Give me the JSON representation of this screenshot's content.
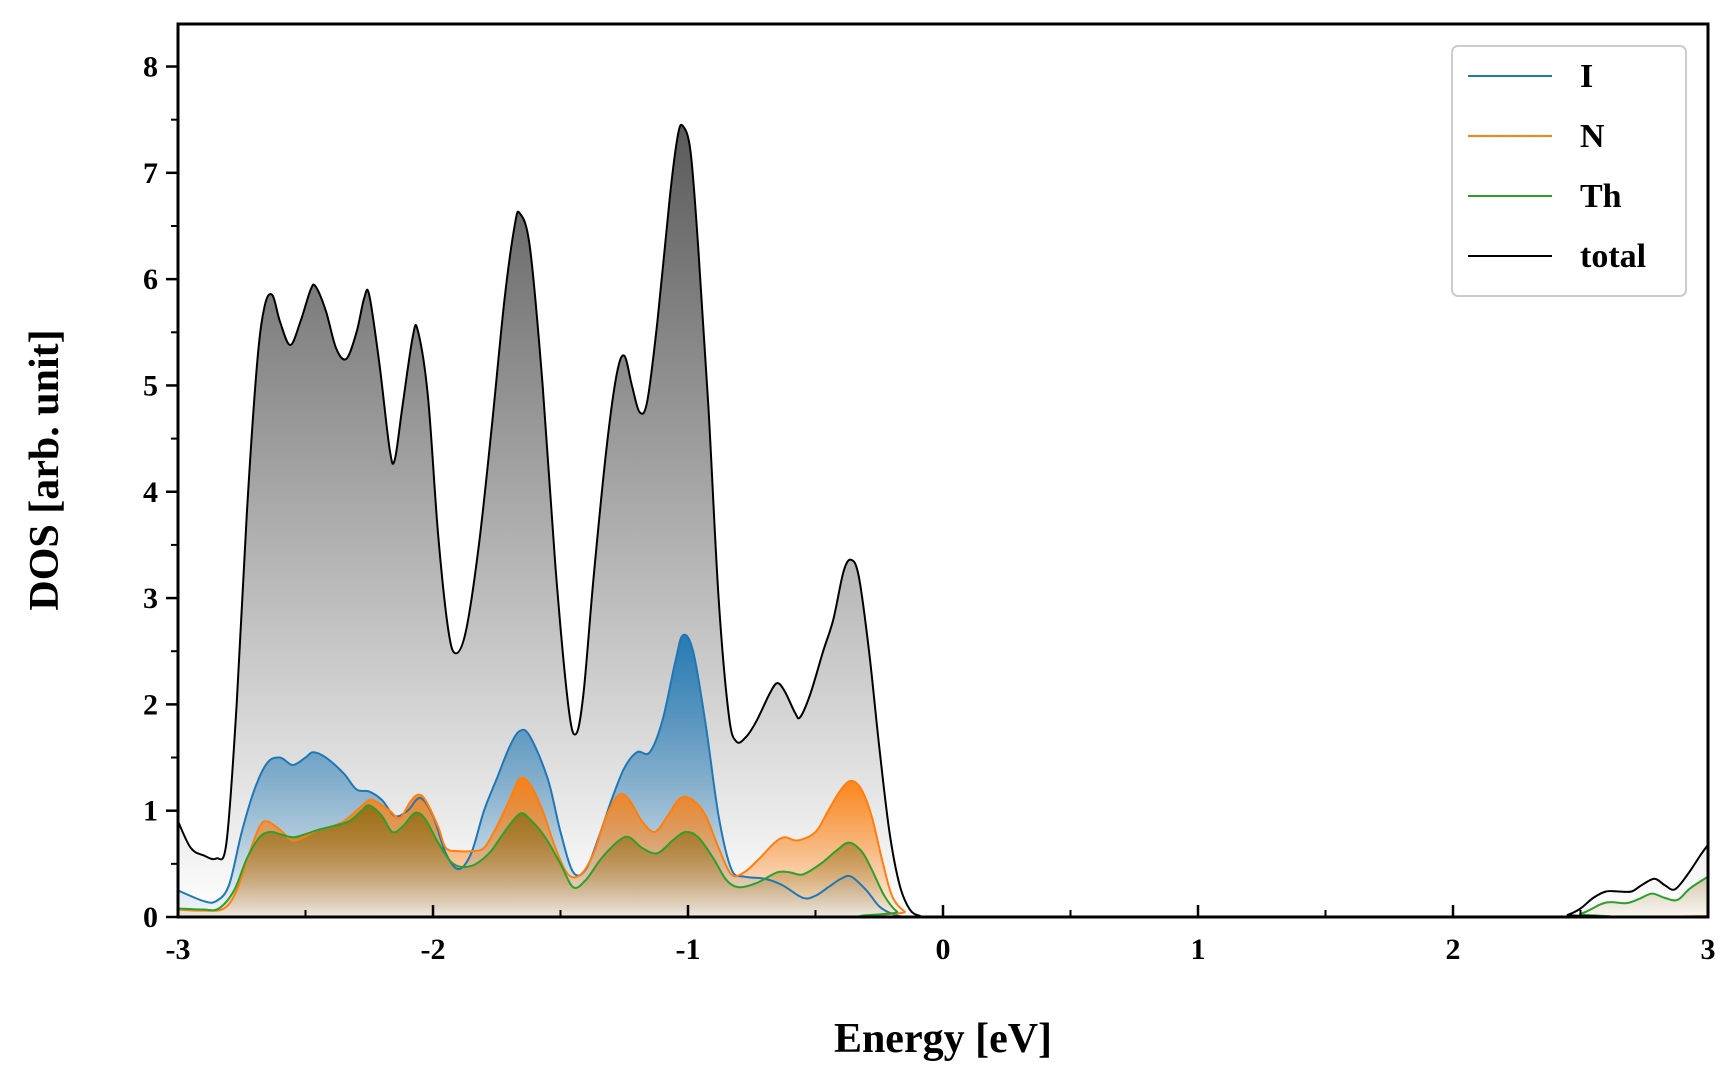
{
  "chart_data": {
    "type": "area",
    "xlabel": "Energy [eV]",
    "ylabel": "DOS [arb. unit]",
    "xlim": [
      -3,
      3
    ],
    "ylim": [
      0,
      8.4
    ],
    "x_ticks": [
      -3,
      -2,
      -1,
      0,
      1,
      2,
      3
    ],
    "x_tick_labels": [
      "-3",
      "-2",
      "-1",
      "0",
      "1",
      "2",
      "3"
    ],
    "y_ticks": [
      0,
      1,
      2,
      3,
      4,
      5,
      6,
      7,
      8
    ],
    "y_tick_labels": [
      "0",
      "1",
      "2",
      "3",
      "4",
      "5",
      "6",
      "7",
      "8"
    ],
    "grid": false,
    "legend_position": "top-right",
    "legend": [
      "I",
      "N",
      "Th",
      "total"
    ],
    "series": [
      {
        "name": "I",
        "color": "#1f77b4",
        "points": [
          [
            -3.0,
            0.25
          ],
          [
            -2.9,
            0.15
          ],
          [
            -2.85,
            0.15
          ],
          [
            -2.8,
            0.3
          ],
          [
            -2.75,
            0.8
          ],
          [
            -2.7,
            1.2
          ],
          [
            -2.65,
            1.45
          ],
          [
            -2.6,
            1.5
          ],
          [
            -2.55,
            1.43
          ],
          [
            -2.5,
            1.5
          ],
          [
            -2.47,
            1.55
          ],
          [
            -2.42,
            1.5
          ],
          [
            -2.35,
            1.35
          ],
          [
            -2.3,
            1.2
          ],
          [
            -2.25,
            1.18
          ],
          [
            -2.2,
            1.1
          ],
          [
            -2.15,
            0.95
          ],
          [
            -2.1,
            1.0
          ],
          [
            -2.05,
            1.12
          ],
          [
            -2.0,
            0.95
          ],
          [
            -1.95,
            0.6
          ],
          [
            -1.9,
            0.45
          ],
          [
            -1.85,
            0.6
          ],
          [
            -1.8,
            1.0
          ],
          [
            -1.75,
            1.3
          ],
          [
            -1.7,
            1.6
          ],
          [
            -1.66,
            1.75
          ],
          [
            -1.62,
            1.7
          ],
          [
            -1.55,
            1.3
          ],
          [
            -1.5,
            0.8
          ],
          [
            -1.45,
            0.42
          ],
          [
            -1.4,
            0.45
          ],
          [
            -1.35,
            0.75
          ],
          [
            -1.3,
            1.1
          ],
          [
            -1.25,
            1.4
          ],
          [
            -1.2,
            1.55
          ],
          [
            -1.15,
            1.55
          ],
          [
            -1.1,
            1.85
          ],
          [
            -1.05,
            2.4
          ],
          [
            -1.02,
            2.65
          ],
          [
            -0.98,
            2.5
          ],
          [
            -0.93,
            1.8
          ],
          [
            -0.88,
            0.95
          ],
          [
            -0.83,
            0.45
          ],
          [
            -0.78,
            0.38
          ],
          [
            -0.7,
            0.36
          ],
          [
            -0.63,
            0.3
          ],
          [
            -0.55,
            0.18
          ],
          [
            -0.5,
            0.2
          ],
          [
            -0.45,
            0.28
          ],
          [
            -0.4,
            0.36
          ],
          [
            -0.36,
            0.38
          ],
          [
            -0.3,
            0.25
          ],
          [
            -0.25,
            0.1
          ],
          [
            -0.2,
            0.03
          ],
          [
            -0.15,
            0.0
          ],
          [
            -0.1,
            0.0
          ],
          [
            3.0,
            0.0
          ]
        ]
      },
      {
        "name": "N",
        "color": "#ff7f0e",
        "points": [
          [
            -3.0,
            0.07
          ],
          [
            -2.9,
            0.06
          ],
          [
            -2.82,
            0.08
          ],
          [
            -2.77,
            0.25
          ],
          [
            -2.72,
            0.6
          ],
          [
            -2.68,
            0.85
          ],
          [
            -2.65,
            0.9
          ],
          [
            -2.6,
            0.82
          ],
          [
            -2.55,
            0.72
          ],
          [
            -2.5,
            0.76
          ],
          [
            -2.45,
            0.82
          ],
          [
            -2.4,
            0.85
          ],
          [
            -2.35,
            0.9
          ],
          [
            -2.3,
            1.0
          ],
          [
            -2.25,
            1.1
          ],
          [
            -2.22,
            1.08
          ],
          [
            -2.17,
            1.0
          ],
          [
            -2.13,
            0.93
          ],
          [
            -2.09,
            1.08
          ],
          [
            -2.06,
            1.15
          ],
          [
            -2.03,
            1.1
          ],
          [
            -1.98,
            0.85
          ],
          [
            -1.95,
            0.65
          ],
          [
            -1.9,
            0.62
          ],
          [
            -1.85,
            0.62
          ],
          [
            -1.8,
            0.65
          ],
          [
            -1.75,
            0.85
          ],
          [
            -1.7,
            1.1
          ],
          [
            -1.66,
            1.3
          ],
          [
            -1.62,
            1.25
          ],
          [
            -1.57,
            1.0
          ],
          [
            -1.52,
            0.65
          ],
          [
            -1.47,
            0.4
          ],
          [
            -1.42,
            0.4
          ],
          [
            -1.37,
            0.6
          ],
          [
            -1.32,
            0.95
          ],
          [
            -1.27,
            1.15
          ],
          [
            -1.23,
            1.1
          ],
          [
            -1.18,
            0.9
          ],
          [
            -1.13,
            0.8
          ],
          [
            -1.08,
            0.95
          ],
          [
            -1.03,
            1.12
          ],
          [
            -0.98,
            1.1
          ],
          [
            -0.93,
            0.95
          ],
          [
            -0.88,
            0.65
          ],
          [
            -0.83,
            0.4
          ],
          [
            -0.78,
            0.42
          ],
          [
            -0.72,
            0.55
          ],
          [
            -0.66,
            0.7
          ],
          [
            -0.62,
            0.75
          ],
          [
            -0.57,
            0.72
          ],
          [
            -0.5,
            0.8
          ],
          [
            -0.45,
            1.0
          ],
          [
            -0.4,
            1.2
          ],
          [
            -0.36,
            1.28
          ],
          [
            -0.32,
            1.2
          ],
          [
            -0.28,
            0.95
          ],
          [
            -0.24,
            0.55
          ],
          [
            -0.2,
            0.2
          ],
          [
            -0.15,
            0.05
          ],
          [
            -0.1,
            0.0
          ],
          [
            2.5,
            0.0
          ],
          [
            3.0,
            0.01
          ]
        ]
      },
      {
        "name": "Th",
        "color": "#2ca02c",
        "points": [
          [
            -3.0,
            0.08
          ],
          [
            -2.9,
            0.07
          ],
          [
            -2.84,
            0.08
          ],
          [
            -2.78,
            0.25
          ],
          [
            -2.73,
            0.55
          ],
          [
            -2.68,
            0.75
          ],
          [
            -2.64,
            0.8
          ],
          [
            -2.6,
            0.78
          ],
          [
            -2.55,
            0.75
          ],
          [
            -2.5,
            0.78
          ],
          [
            -2.45,
            0.82
          ],
          [
            -2.4,
            0.85
          ],
          [
            -2.33,
            0.9
          ],
          [
            -2.28,
            1.0
          ],
          [
            -2.25,
            1.05
          ],
          [
            -2.2,
            0.95
          ],
          [
            -2.16,
            0.8
          ],
          [
            -2.12,
            0.85
          ],
          [
            -2.07,
            0.98
          ],
          [
            -2.03,
            0.92
          ],
          [
            -1.98,
            0.7
          ],
          [
            -1.92,
            0.5
          ],
          [
            -1.85,
            0.48
          ],
          [
            -1.78,
            0.6
          ],
          [
            -1.72,
            0.8
          ],
          [
            -1.66,
            0.97
          ],
          [
            -1.62,
            0.92
          ],
          [
            -1.56,
            0.75
          ],
          [
            -1.5,
            0.5
          ],
          [
            -1.45,
            0.28
          ],
          [
            -1.4,
            0.35
          ],
          [
            -1.34,
            0.55
          ],
          [
            -1.27,
            0.72
          ],
          [
            -1.23,
            0.75
          ],
          [
            -1.18,
            0.65
          ],
          [
            -1.12,
            0.6
          ],
          [
            -1.06,
            0.72
          ],
          [
            -1.01,
            0.8
          ],
          [
            -0.96,
            0.75
          ],
          [
            -0.9,
            0.55
          ],
          [
            -0.85,
            0.35
          ],
          [
            -0.8,
            0.28
          ],
          [
            -0.73,
            0.32
          ],
          [
            -0.65,
            0.42
          ],
          [
            -0.6,
            0.42
          ],
          [
            -0.55,
            0.4
          ],
          [
            -0.48,
            0.5
          ],
          [
            -0.42,
            0.62
          ],
          [
            -0.37,
            0.7
          ],
          [
            -0.32,
            0.62
          ],
          [
            -0.28,
            0.45
          ],
          [
            -0.23,
            0.2
          ],
          [
            -0.18,
            0.05
          ],
          [
            -0.12,
            0.0
          ],
          [
            2.4,
            0.0
          ],
          [
            2.5,
            0.03
          ],
          [
            2.58,
            0.12
          ],
          [
            2.62,
            0.14
          ],
          [
            2.68,
            0.13
          ],
          [
            2.73,
            0.17
          ],
          [
            2.78,
            0.22
          ],
          [
            2.83,
            0.18
          ],
          [
            2.88,
            0.16
          ],
          [
            2.93,
            0.27
          ],
          [
            3.0,
            0.38
          ]
        ]
      },
      {
        "name": "total",
        "color": "#000000",
        "points": [
          [
            -3.0,
            0.9
          ],
          [
            -2.95,
            0.65
          ],
          [
            -2.9,
            0.58
          ],
          [
            -2.85,
            0.55
          ],
          [
            -2.81,
            0.7
          ],
          [
            -2.77,
            2.0
          ],
          [
            -2.73,
            3.8
          ],
          [
            -2.69,
            5.2
          ],
          [
            -2.66,
            5.75
          ],
          [
            -2.63,
            5.85
          ],
          [
            -2.6,
            5.6
          ],
          [
            -2.56,
            5.38
          ],
          [
            -2.52,
            5.6
          ],
          [
            -2.48,
            5.9
          ],
          [
            -2.46,
            5.93
          ],
          [
            -2.42,
            5.7
          ],
          [
            -2.38,
            5.35
          ],
          [
            -2.34,
            5.25
          ],
          [
            -2.3,
            5.5
          ],
          [
            -2.27,
            5.82
          ],
          [
            -2.25,
            5.85
          ],
          [
            -2.21,
            5.2
          ],
          [
            -2.17,
            4.4
          ],
          [
            -2.15,
            4.3
          ],
          [
            -2.12,
            4.8
          ],
          [
            -2.08,
            5.45
          ],
          [
            -2.06,
            5.52
          ],
          [
            -2.02,
            4.9
          ],
          [
            -1.98,
            3.6
          ],
          [
            -1.94,
            2.7
          ],
          [
            -1.91,
            2.48
          ],
          [
            -1.87,
            2.7
          ],
          [
            -1.82,
            3.5
          ],
          [
            -1.77,
            4.6
          ],
          [
            -1.72,
            5.8
          ],
          [
            -1.68,
            6.5
          ],
          [
            -1.66,
            6.62
          ],
          [
            -1.62,
            6.3
          ],
          [
            -1.57,
            5.0
          ],
          [
            -1.52,
            3.3
          ],
          [
            -1.47,
            2.0
          ],
          [
            -1.44,
            1.72
          ],
          [
            -1.41,
            2.1
          ],
          [
            -1.37,
            3.2
          ],
          [
            -1.32,
            4.4
          ],
          [
            -1.28,
            5.1
          ],
          [
            -1.25,
            5.28
          ],
          [
            -1.22,
            5.0
          ],
          [
            -1.19,
            4.75
          ],
          [
            -1.16,
            4.85
          ],
          [
            -1.12,
            5.6
          ],
          [
            -1.07,
            6.8
          ],
          [
            -1.04,
            7.35
          ],
          [
            -1.02,
            7.44
          ],
          [
            -0.99,
            7.2
          ],
          [
            -0.96,
            6.3
          ],
          [
            -0.92,
            4.8
          ],
          [
            -0.88,
            3.0
          ],
          [
            -0.84,
            1.9
          ],
          [
            -0.81,
            1.65
          ],
          [
            -0.77,
            1.7
          ],
          [
            -0.73,
            1.85
          ],
          [
            -0.68,
            2.1
          ],
          [
            -0.65,
            2.2
          ],
          [
            -0.62,
            2.12
          ],
          [
            -0.58,
            1.92
          ],
          [
            -0.56,
            1.88
          ],
          [
            -0.52,
            2.1
          ],
          [
            -0.47,
            2.5
          ],
          [
            -0.43,
            2.8
          ],
          [
            -0.39,
            3.25
          ],
          [
            -0.36,
            3.36
          ],
          [
            -0.33,
            3.2
          ],
          [
            -0.29,
            2.5
          ],
          [
            -0.25,
            1.6
          ],
          [
            -0.21,
            0.8
          ],
          [
            -0.17,
            0.3
          ],
          [
            -0.13,
            0.07
          ],
          [
            -0.09,
            0.01
          ],
          [
            -0.05,
            0.0
          ],
          [
            2.4,
            0.0
          ],
          [
            2.45,
            0.02
          ],
          [
            2.5,
            0.08
          ],
          [
            2.55,
            0.18
          ],
          [
            2.6,
            0.24
          ],
          [
            2.65,
            0.24
          ],
          [
            2.7,
            0.24
          ],
          [
            2.74,
            0.3
          ],
          [
            2.79,
            0.36
          ],
          [
            2.83,
            0.3
          ],
          [
            2.87,
            0.26
          ],
          [
            2.92,
            0.4
          ],
          [
            2.97,
            0.58
          ],
          [
            3.0,
            0.68
          ]
        ]
      }
    ]
  }
}
